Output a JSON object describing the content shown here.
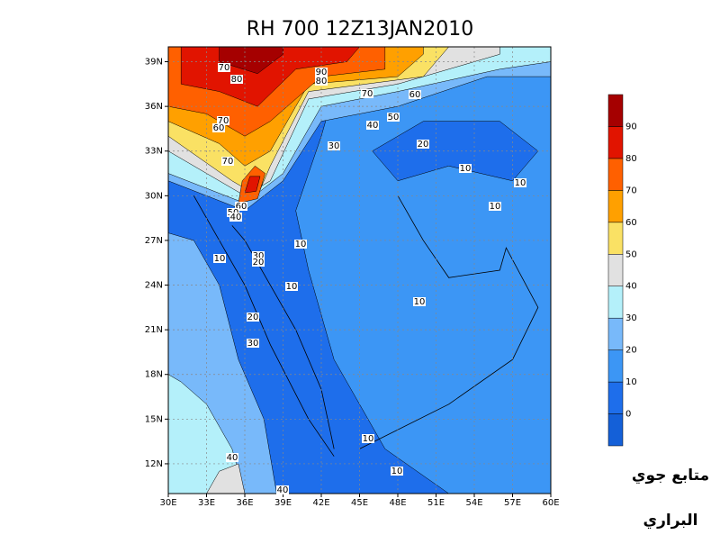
{
  "map": {
    "title": "RH 700  12Z13JAN2010",
    "xlim": [
      30,
      60
    ],
    "ylim": [
      10,
      40
    ],
    "xticks": [
      {
        "value": 30,
        "label": "30E"
      },
      {
        "value": 33,
        "label": "33E"
      },
      {
        "value": 36,
        "label": "36E"
      },
      {
        "value": 39,
        "label": "39E"
      },
      {
        "value": 42,
        "label": "42E"
      },
      {
        "value": 45,
        "label": "45E"
      },
      {
        "value": 48,
        "label": "48E"
      },
      {
        "value": 51,
        "label": "51E"
      },
      {
        "value": 54,
        "label": "54E"
      },
      {
        "value": 57,
        "label": "57E"
      },
      {
        "value": 60,
        "label": "60E"
      }
    ],
    "yticks": [
      {
        "value": 12,
        "label": "12N"
      },
      {
        "value": 15,
        "label": "15N"
      },
      {
        "value": 18,
        "label": "18N"
      },
      {
        "value": 21,
        "label": "21N"
      },
      {
        "value": 24,
        "label": "24N"
      },
      {
        "value": 27,
        "label": "27N"
      },
      {
        "value": 30,
        "label": "30N"
      },
      {
        "value": 33,
        "label": "33N"
      },
      {
        "value": 36,
        "label": "36N"
      },
      {
        "value": 39,
        "label": "39N"
      }
    ],
    "grid": true,
    "colorbar": {
      "levels": [
        0,
        10,
        20,
        30,
        40,
        50,
        60,
        70,
        80,
        90
      ],
      "colors": [
        "#1460d8",
        "#1e6eeb",
        "#3c96f5",
        "#78b9fa",
        "#b4f0fa",
        "#e1e1e1",
        "#fae164",
        "#ffa000",
        "#ff6000",
        "#e11400",
        "#a50000"
      ]
    },
    "contour_labels": [
      70,
      80,
      90,
      80,
      70,
      60,
      70,
      60,
      50,
      40,
      30,
      20,
      70,
      10,
      10,
      60,
      50,
      40,
      10,
      10,
      30,
      20,
      10,
      10,
      10,
      20,
      30,
      10,
      40,
      10,
      40
    ]
  },
  "watermark": [
    "متابع جوي",
    "البراري"
  ]
}
